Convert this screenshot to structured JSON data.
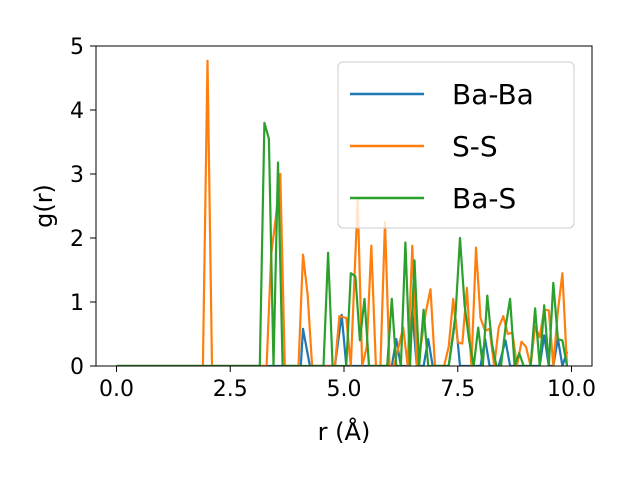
{
  "chart_data": {
    "type": "line",
    "xlabel": "r (Å)",
    "ylabel": "g(r)",
    "xlim": [
      -0.45,
      10.45
    ],
    "ylim": [
      0,
      5
    ],
    "xticks": [
      0.0,
      2.5,
      5.0,
      7.5,
      10.0
    ],
    "xtick_labels": [
      "0.0",
      "2.5",
      "5.0",
      "7.5",
      "10.0"
    ],
    "yticks": [
      0,
      1,
      2,
      3,
      4,
      5
    ],
    "ytick_labels": [
      "0",
      "1",
      "2",
      "3",
      "4",
      "5"
    ],
    "grid": false,
    "legend_position": "upper-right",
    "series": [
      {
        "name": "Ba-Ba",
        "color": "#1f77b4",
        "x": [
          0.0,
          3.9,
          4.05,
          4.1,
          4.25,
          4.8,
          4.95,
          5.05,
          6.05,
          6.15,
          6.25,
          6.4,
          6.5,
          6.6,
          6.75,
          6.85,
          6.95,
          7.3,
          7.45,
          7.55,
          7.7,
          7.8,
          8.0,
          8.1,
          8.2,
          8.3,
          8.4,
          8.55,
          8.65,
          8.8,
          9.3,
          9.4,
          9.5,
          9.6,
          9.7,
          9.8,
          9.9
        ],
        "y": [
          0.0,
          0.0,
          0.0,
          0.58,
          0.0,
          0.0,
          0.8,
          0.0,
          0.0,
          0.42,
          0.0,
          0.0,
          0.85,
          0.0,
          0.0,
          0.42,
          0.0,
          0.0,
          0.75,
          0.0,
          0.0,
          0.0,
          0.0,
          0.42,
          0.0,
          0.0,
          0.0,
          0.4,
          0.0,
          0.0,
          0.0,
          0.48,
          0.0,
          0.0,
          0.43,
          0.0,
          0.22
        ]
      },
      {
        "name": "S-S",
        "color": "#ff7f0e",
        "x": [
          0.0,
          1.9,
          2.0,
          2.1,
          2.2,
          3.3,
          3.4,
          3.5,
          3.6,
          3.7,
          3.9,
          4.0,
          4.1,
          4.2,
          4.3,
          4.8,
          4.9,
          5.05,
          5.15,
          5.3,
          5.4,
          5.5,
          5.6,
          5.7,
          5.8,
          5.9,
          6.0,
          6.1,
          6.2,
          6.3,
          6.4,
          6.5,
          6.6,
          6.7,
          6.8,
          6.9,
          7.0,
          7.1,
          7.2,
          7.3,
          7.4,
          7.5,
          7.6,
          7.7,
          7.8,
          7.9,
          8.0,
          8.1,
          8.2,
          8.3,
          8.4,
          8.5,
          8.6,
          8.7,
          8.8,
          8.9,
          9.0,
          9.1,
          9.2,
          9.3,
          9.4,
          9.5,
          9.6,
          9.7,
          9.8,
          9.9
        ],
        "y": [
          0.0,
          0.0,
          4.77,
          0.0,
          0.0,
          0.0,
          1.75,
          2.3,
          3.0,
          0.0,
          0.0,
          0.0,
          1.74,
          1.12,
          0.0,
          0.0,
          0.78,
          0.75,
          0.0,
          2.6,
          0.0,
          0.3,
          1.88,
          0.0,
          0.0,
          2.25,
          0.0,
          0.0,
          0.3,
          0.6,
          0.0,
          1.88,
          0.0,
          0.38,
          0.85,
          1.2,
          0.0,
          0.0,
          0.0,
          0.3,
          1.05,
          0.37,
          0.35,
          1.22,
          0.0,
          1.85,
          0.75,
          0.55,
          0.58,
          0.0,
          0.6,
          0.78,
          0.5,
          0.52,
          0.0,
          0.38,
          0.3,
          0.0,
          0.62,
          0.45,
          0.88,
          0.87,
          0.0,
          0.86,
          1.45,
          0.0
        ]
      },
      {
        "name": "Ba-S",
        "color": "#2ca02c",
        "x": [
          0.0,
          3.05,
          3.15,
          3.25,
          3.35,
          3.45,
          3.55,
          3.65,
          3.75,
          4.55,
          4.65,
          4.75,
          4.95,
          5.05,
          5.15,
          5.25,
          5.35,
          5.45,
          5.55,
          5.95,
          6.05,
          6.15,
          6.25,
          6.35,
          6.45,
          6.55,
          6.65,
          6.75,
          6.85,
          6.95,
          7.3,
          7.45,
          7.55,
          7.65,
          7.75,
          7.85,
          7.95,
          8.05,
          8.15,
          8.25,
          8.35,
          8.45,
          8.55,
          8.65,
          8.75,
          8.85,
          8.95,
          9.1,
          9.2,
          9.3,
          9.4,
          9.5,
          9.6,
          9.7,
          9.8,
          9.9
        ],
        "y": [
          0.0,
          0.0,
          0.0,
          3.8,
          3.55,
          0.0,
          3.18,
          0.0,
          0.0,
          0.0,
          1.77,
          0.0,
          0.0,
          0.0,
          1.45,
          1.4,
          0.4,
          1.05,
          0.0,
          0.0,
          1.05,
          0.0,
          0.0,
          1.93,
          0.0,
          1.65,
          0.0,
          0.88,
          0.0,
          0.0,
          0.0,
          0.8,
          2.0,
          0.95,
          0.4,
          0.0,
          0.6,
          0.0,
          1.1,
          0.35,
          0.0,
          0.0,
          0.6,
          1.05,
          0.0,
          0.2,
          0.0,
          0.0,
          0.9,
          0.0,
          0.95,
          0.0,
          1.3,
          0.42,
          0.4,
          0.0
        ]
      }
    ]
  }
}
